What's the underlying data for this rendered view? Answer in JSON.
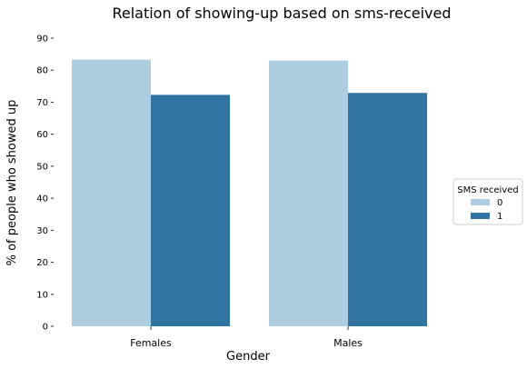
{
  "chart_data": {
    "type": "bar",
    "title": "Relation of showing-up based on sms-received",
    "xlabel": "Gender",
    "ylabel": "% of people who showed up",
    "categories": [
      "Females",
      "Males"
    ],
    "series": [
      {
        "name": "0",
        "values": [
          83.3,
          83.0
        ],
        "color": "#aecde0"
      },
      {
        "name": "1",
        "values": [
          72.3,
          72.9
        ],
        "color": "#3274a1"
      }
    ],
    "ylim": [
      0,
      90
    ],
    "yticks": [
      0,
      10,
      20,
      30,
      40,
      50,
      60,
      70,
      80,
      90
    ],
    "grid": false,
    "legend": {
      "title": "SMS received",
      "placement": "right"
    }
  }
}
